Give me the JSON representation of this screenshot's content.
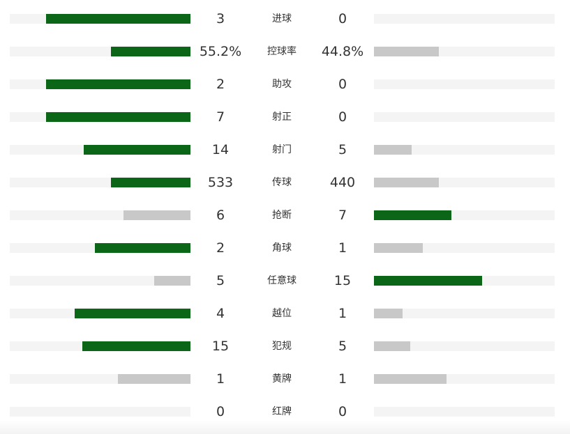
{
  "colors": {
    "winner_fill": "#0b6618",
    "loser_fill": "#c8c8c8",
    "track": "#f4f4f4",
    "text": "#333333"
  },
  "stats": [
    {
      "label": "进球",
      "home": "3",
      "away": "0",
      "home_ratio": 0.8,
      "away_ratio": 0.0,
      "leader": "home"
    },
    {
      "label": "控球率",
      "home": "55.2%",
      "away": "44.8%",
      "home_ratio": 0.44,
      "away_ratio": 0.36,
      "leader": "home"
    },
    {
      "label": "助攻",
      "home": "2",
      "away": "0",
      "home_ratio": 0.8,
      "away_ratio": 0.0,
      "leader": "home"
    },
    {
      "label": "射正",
      "home": "7",
      "away": "0",
      "home_ratio": 0.8,
      "away_ratio": 0.0,
      "leader": "home"
    },
    {
      "label": "射门",
      "home": "14",
      "away": "5",
      "home_ratio": 0.59,
      "away_ratio": 0.21,
      "leader": "home"
    },
    {
      "label": "传球",
      "home": "533",
      "away": "440",
      "home_ratio": 0.44,
      "away_ratio": 0.36,
      "leader": "home"
    },
    {
      "label": "抢断",
      "home": "6",
      "away": "7",
      "home_ratio": 0.37,
      "away_ratio": 0.43,
      "leader": "away"
    },
    {
      "label": "角球",
      "home": "2",
      "away": "1",
      "home_ratio": 0.53,
      "away_ratio": 0.27,
      "leader": "home"
    },
    {
      "label": "任意球",
      "home": "5",
      "away": "15",
      "home_ratio": 0.2,
      "away_ratio": 0.6,
      "leader": "away"
    },
    {
      "label": "越位",
      "home": "4",
      "away": "1",
      "home_ratio": 0.64,
      "away_ratio": 0.16,
      "leader": "home"
    },
    {
      "label": "犯规",
      "home": "15",
      "away": "5",
      "home_ratio": 0.6,
      "away_ratio": 0.2,
      "leader": "home"
    },
    {
      "label": "黄牌",
      "home": "1",
      "away": "1",
      "home_ratio": 0.4,
      "away_ratio": 0.4,
      "leader": "none"
    },
    {
      "label": "红牌",
      "home": "0",
      "away": "0",
      "home_ratio": 0.0,
      "away_ratio": 0.0,
      "leader": "none"
    }
  ]
}
